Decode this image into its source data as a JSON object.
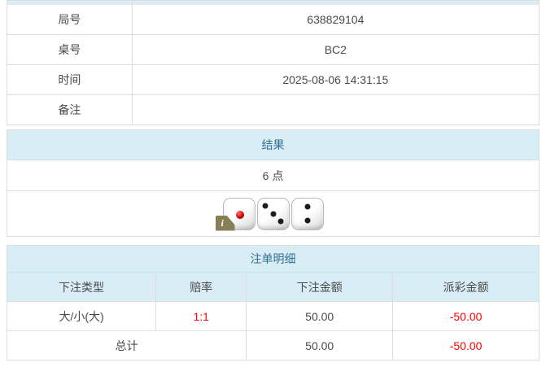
{
  "colors": {
    "header_bg": "#d9edf7",
    "header_text": "#31708f",
    "table_border": "#dddddd",
    "negative_text": "#ff0000",
    "body_text": "#4a4a4a"
  },
  "info_table": {
    "rows": [
      {
        "label": "局号",
        "value": "638829104"
      },
      {
        "label": "桌号",
        "value": "BC2"
      },
      {
        "label": "时间",
        "value": "2025-08-06 14:31:15"
      },
      {
        "label": "备注",
        "value": ""
      }
    ]
  },
  "result_panel": {
    "title": "结果",
    "points_text": "6 点",
    "dice": [
      1,
      3,
      2
    ],
    "info_icon": "i"
  },
  "bet_panel": {
    "title": "注单明细",
    "columns": [
      "下注类型",
      "赔率",
      "下注金额",
      "派彩金额"
    ],
    "rows": [
      {
        "bet_type": "大/小(大)",
        "odds": "1:1",
        "bet_amount": "50.00",
        "payout": "-50.00"
      }
    ],
    "total": {
      "label": "总计",
      "bet_amount": "50.00",
      "payout": "-50.00"
    }
  }
}
